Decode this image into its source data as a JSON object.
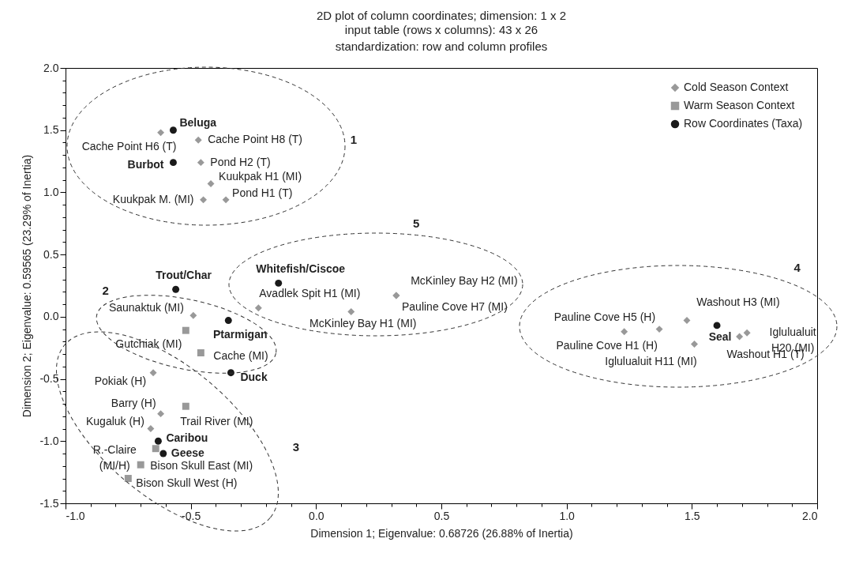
{
  "chart_data": {
    "type": "scatter",
    "title": "2D plot of column coordinates; dimension: 1 x 2",
    "subtitle": "input table (rows x columns): 43 x 26\nstandardization: row and column profiles",
    "xlabel": "Dimension 1; Eigenvalue: 0.68726 (26.88% of Inertia)",
    "ylabel": "Dimension 2; Eigenvalue: 0.59565 (23.29% of Inertia)",
    "xlim": [
      -1,
      2
    ],
    "ylim": [
      -1.5,
      2
    ],
    "xticks": [
      {
        "value": -1,
        "label": "-1.0"
      },
      {
        "value": -0.9,
        "label": null
      },
      {
        "value": -0.8,
        "label": null
      },
      {
        "value": -0.7,
        "label": null
      },
      {
        "value": -0.6,
        "label": null
      },
      -0.5,
      {
        "value": -0.4,
        "label": null
      },
      {
        "value": -0.3,
        "label": null
      },
      {
        "value": -0.2,
        "label": null
      },
      {
        "value": -0.1,
        "label": null
      },
      {
        "value": 0,
        "label": "0.0"
      },
      {
        "value": 0.1,
        "label": null
      },
      {
        "value": 0.2,
        "label": null
      },
      {
        "value": 0.3,
        "label": null
      },
      {
        "value": 0.4,
        "label": null
      },
      0.5,
      {
        "value": 0.6,
        "label": null
      },
      {
        "value": 0.7,
        "label": null
      },
      {
        "value": 0.8,
        "label": null
      },
      {
        "value": 0.9,
        "label": null
      },
      {
        "value": 1,
        "label": "1.0"
      },
      {
        "value": 1.1,
        "label": null
      },
      {
        "value": 1.2,
        "label": null
      },
      {
        "value": 1.3,
        "label": null
      },
      {
        "value": 1.4,
        "label": null
      },
      1.5,
      {
        "value": 1.6,
        "label": null
      },
      {
        "value": 1.7,
        "label": null
      },
      {
        "value": 1.8,
        "label": null
      },
      {
        "value": 1.9,
        "label": null
      },
      {
        "value": 2,
        "label": "2.0"
      }
    ],
    "yticks": [
      {
        "value": -1.5,
        "label": "-1.5"
      },
      {
        "value": -1.4,
        "label": null
      },
      {
        "value": -1.3,
        "label": null
      },
      {
        "value": -1.2,
        "label": null
      },
      {
        "value": -1.1,
        "label": null
      },
      {
        "value": -1,
        "label": "-1.0"
      },
      {
        "value": -0.9,
        "label": null
      },
      {
        "value": -0.8,
        "label": null
      },
      {
        "value": -0.7,
        "label": null
      },
      {
        "value": -0.6,
        "label": null
      },
      -0.5,
      {
        "value": -0.4,
        "label": null
      },
      {
        "value": -0.3,
        "label": null
      },
      {
        "value": -0.2,
        "label": null
      },
      {
        "value": -0.1,
        "label": null
      },
      {
        "value": 0,
        "label": "0.0"
      },
      {
        "value": 0.1,
        "label": null
      },
      {
        "value": 0.2,
        "label": null
      },
      {
        "value": 0.3,
        "label": null
      },
      {
        "value": 0.4,
        "label": null
      },
      0.5,
      {
        "value": 0.6,
        "label": null
      },
      {
        "value": 0.7,
        "label": null
      },
      {
        "value": 0.8,
        "label": null
      },
      {
        "value": 0.9,
        "label": null
      },
      {
        "value": 1,
        "label": "1.0"
      },
      {
        "value": 1.1,
        "label": null
      },
      {
        "value": 1.2,
        "label": null
      },
      {
        "value": 1.3,
        "label": null
      },
      {
        "value": 1.4,
        "label": null
      },
      1.5,
      {
        "value": 1.6,
        "label": null
      },
      {
        "value": 1.7,
        "label": null
      },
      {
        "value": 1.8,
        "label": null
      },
      {
        "value": 1.9,
        "label": null
      },
      {
        "value": 2,
        "label": "2.0"
      }
    ],
    "legend": "top right",
    "series": [
      {
        "name": "Cold Season Context",
        "color": "#999999",
        "marker": "diamond",
        "x": [
          -0.62,
          -0.47,
          -0.46,
          -0.42,
          -0.45,
          -0.36,
          -0.49,
          -0.65,
          -0.62,
          -0.66,
          -0.23,
          0.14,
          0.32,
          0.32,
          1.23,
          1.37,
          1.48,
          1.51,
          1.69,
          1.72
        ],
        "values": [
          1.48,
          1.42,
          1.24,
          1.07,
          0.94,
          0.94,
          0.01,
          -0.45,
          -0.78,
          -0.9,
          0.07,
          0.04,
          0.17,
          0.17,
          -0.12,
          -0.1,
          -0.03,
          -0.22,
          -0.16,
          -0.13
        ]
      },
      {
        "name": "Warm Season Context",
        "color": "#999999",
        "marker": "square",
        "x": [
          -0.52,
          -0.46,
          -0.52,
          -0.64,
          -0.7,
          -0.75
        ],
        "values": [
          -0.11,
          -0.29,
          -0.72,
          -1.06,
          -1.19,
          -1.3
        ]
      },
      {
        "name": "Row Coordinates (Taxa)",
        "color": "#1a1a1a",
        "marker": "circle",
        "x": [
          -0.57,
          -0.57,
          -0.56,
          -0.15,
          -0.35,
          -0.34,
          -0.63,
          -0.61,
          1.6
        ],
        "values": [
          1.5,
          1.24,
          0.22,
          0.27,
          -0.03,
          -0.45,
          -1.0,
          -1.1,
          -0.07
        ]
      }
    ],
    "annotations": [
      {
        "text": "Cache Point H6 (T)",
        "x": -0.62,
        "y": 1.48
      },
      {
        "text": "Beluga",
        "x": -0.57,
        "y": 1.5
      },
      {
        "text": "Cache Point H8 (T)",
        "x": -0.47,
        "y": 1.42
      },
      {
        "text": "Burbot",
        "x": -0.57,
        "y": 1.24
      },
      {
        "text": "Pond H2 (T)",
        "x": -0.46,
        "y": 1.24
      },
      {
        "text": "Kuukpak H1 (MI)",
        "x": -0.42,
        "y": 1.07
      },
      {
        "text": "Kuukpak M. (MI)",
        "x": -0.45,
        "y": 0.94
      },
      {
        "text": "Pond H1 (T)",
        "x": -0.36,
        "y": 0.94
      },
      {
        "text": "Trout/Char",
        "x": -0.56,
        "y": 0.22
      },
      {
        "text": "Whitefish/Ciscoe",
        "x": -0.15,
        "y": 0.27
      },
      {
        "text": "Avadlek Spit H1 (MI)",
        "x": -0.23,
        "y": 0.07
      },
      {
        "text": "McKinley Bay H2 (MI)",
        "x": 0.32,
        "y": 0.17
      },
      {
        "text": "Pauline Cove H7 (MI)",
        "x": 0.32,
        "y": 0.17
      },
      {
        "text": "McKinley Bay H1 (MI)",
        "x": 0.14,
        "y": 0.04
      },
      {
        "text": "Saunaktuk (MI)",
        "x": -0.49,
        "y": 0.01
      },
      {
        "text": "Ptarmigan",
        "x": -0.35,
        "y": -0.03
      },
      {
        "text": "Gutchiak (MI)",
        "x": -0.52,
        "y": -0.11
      },
      {
        "text": "Cache (MI)",
        "x": -0.46,
        "y": -0.29
      },
      {
        "text": "Duck",
        "x": -0.34,
        "y": -0.45
      },
      {
        "text": "Pokiak (H)",
        "x": -0.65,
        "y": -0.45
      },
      {
        "text": "Barry (H)",
        "x": -0.62,
        "y": -0.78
      },
      {
        "text": "Trail River (MI)",
        "x": -0.52,
        "y": -0.72
      },
      {
        "text": "Kugaluk (H)",
        "x": -0.66,
        "y": -0.9
      },
      {
        "text": "Caribou",
        "x": -0.63,
        "y": -1.0
      },
      {
        "text": "R.-Claire (MI/H)",
        "x": -0.64,
        "y": -1.06
      },
      {
        "text": "Geese",
        "x": -0.61,
        "y": -1.1
      },
      {
        "text": "Bison Skull East (MI)",
        "x": -0.7,
        "y": -1.19
      },
      {
        "text": "Bison Skull West (H)",
        "x": -0.75,
        "y": -1.3
      },
      {
        "text": "Pauline Cove H5 (H)",
        "x": 1.37,
        "y": -0.1
      },
      {
        "text": "Pauline Cove H1 (H)",
        "x": 1.23,
        "y": -0.12
      },
      {
        "text": "Washout H3 (MI)",
        "x": 1.48,
        "y": -0.03
      },
      {
        "text": "Iglulualuit H11 (MI)",
        "x": 1.51,
        "y": -0.22
      },
      {
        "text": "Seal",
        "x": 1.6,
        "y": -0.07
      },
      {
        "text": "Washout H1 (T)",
        "x": 1.69,
        "y": -0.16
      },
      {
        "text": "Iglulualuit H20 (MI)",
        "x": 1.72,
        "y": -0.13
      },
      "1",
      "2",
      "3",
      "4",
      "5"
    ]
  }
}
